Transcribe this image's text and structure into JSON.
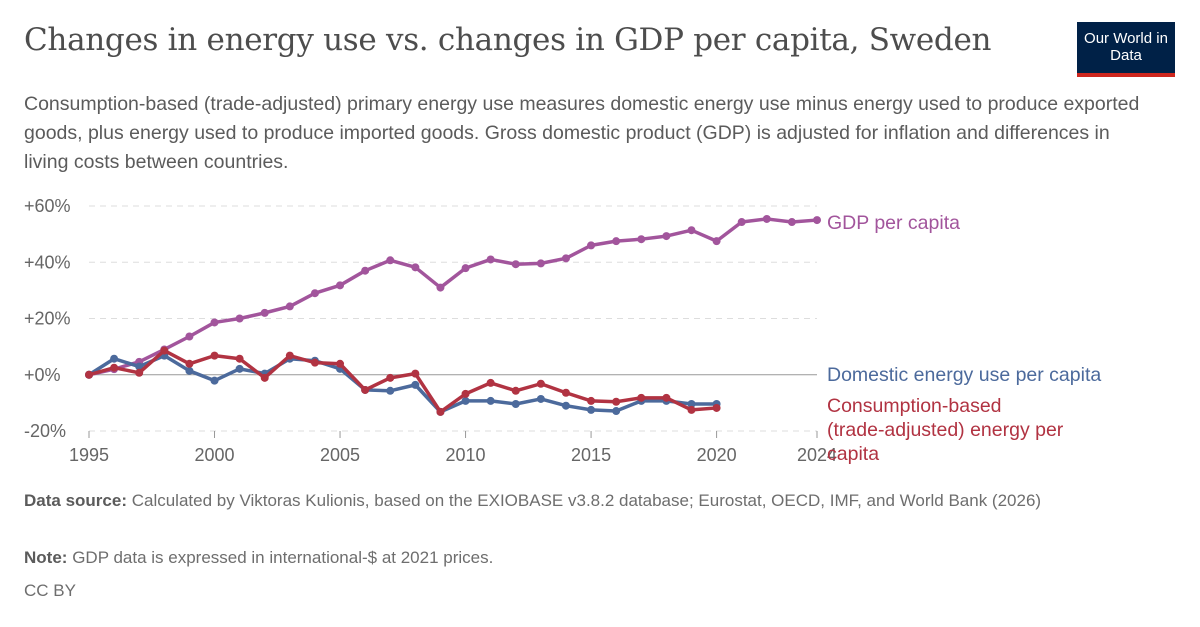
{
  "title": "Changes in energy use vs. changes in GDP per capita, Sweden",
  "subtitle": "Consumption-based (trade-adjusted) primary energy use measures domestic energy use minus energy used to produce exported goods, plus energy used to produce imported goods. Gross domestic product (GDP) is adjusted for inflation and differences in living costs between countries.",
  "logo": "Our World in Data",
  "footer": {
    "source_label": "Data source:",
    "source": "Calculated by Viktoras Kulionis, based on the EXIOBASE v3.8.2 database; Eurostat, OECD, IMF, and World Bank (2026)",
    "note_label": "Note:",
    "note": "GDP data is expressed in international-$ at 2021 prices.",
    "license": "CC BY"
  },
  "chart_data": {
    "type": "line",
    "xlim": [
      1995,
      2024
    ],
    "ylim": [
      -20,
      60
    ],
    "x_ticks": [
      "1995",
      "2000",
      "2005",
      "2010",
      "2015",
      "2020",
      "2024"
    ],
    "y_ticks": [
      "-20%",
      "+0%",
      "+20%",
      "+40%",
      "+60%"
    ],
    "grid": true,
    "legend": "right (line-end labels)",
    "series": [
      {
        "name": "GDP per capita",
        "color": "#a2559c",
        "x": [
          1995,
          1996,
          1997,
          1998,
          1999,
          2000,
          2001,
          2002,
          2003,
          2004,
          2005,
          2006,
          2007,
          2008,
          2009,
          2010,
          2011,
          2012,
          2013,
          2014,
          2015,
          2016,
          2017,
          2018,
          2019,
          2020,
          2021,
          2022,
          2023,
          2024
        ],
        "values": [
          0,
          2,
          4.6,
          9,
          13.6,
          18.6,
          20,
          22,
          24.3,
          29,
          31.8,
          37,
          40.7,
          38.2,
          31,
          37.9,
          41,
          39.3,
          39.6,
          41.4,
          46,
          47.5,
          48.2,
          49.3,
          51.4,
          47.5,
          54.3,
          55.4,
          54.3,
          55
        ]
      },
      {
        "name": "Domestic energy use per capita",
        "color": "#4c6a9c",
        "x": [
          1995,
          1996,
          1997,
          1998,
          1999,
          2000,
          2001,
          2002,
          2003,
          2004,
          2005,
          2006,
          2007,
          2008,
          2009,
          2010,
          2011,
          2012,
          2013,
          2014,
          2015,
          2016,
          2017,
          2018,
          2019,
          2020
        ],
        "values": [
          0,
          5.7,
          2.9,
          6.8,
          1.4,
          -2.1,
          2.1,
          0.4,
          5.7,
          5,
          2.1,
          -5.4,
          -5.7,
          -3.6,
          -13.2,
          -9.3,
          -9.3,
          -10.4,
          -8.6,
          -11,
          -12.5,
          -12.9,
          -9.3,
          -9.3,
          -10.4,
          -10.4
        ]
      },
      {
        "name": "Consumption-based (trade-adjusted) energy per capita",
        "color": "#b13342",
        "x": [
          1995,
          1996,
          1997,
          1998,
          1999,
          2000,
          2001,
          2002,
          2003,
          2004,
          2005,
          2006,
          2007,
          2008,
          2009,
          2010,
          2011,
          2012,
          2013,
          2014,
          2015,
          2016,
          2017,
          2018,
          2019,
          2020
        ],
        "values": [
          0,
          2.5,
          0.7,
          8.6,
          3.9,
          6.8,
          5.7,
          -1.1,
          6.8,
          4.3,
          3.9,
          -5.4,
          -1.1,
          0.4,
          -13.2,
          -6.8,
          -2.9,
          -5.7,
          -3.2,
          -6.4,
          -9.3,
          -9.6,
          -8.2,
          -8.2,
          -12.5,
          -11.8
        ]
      }
    ]
  }
}
